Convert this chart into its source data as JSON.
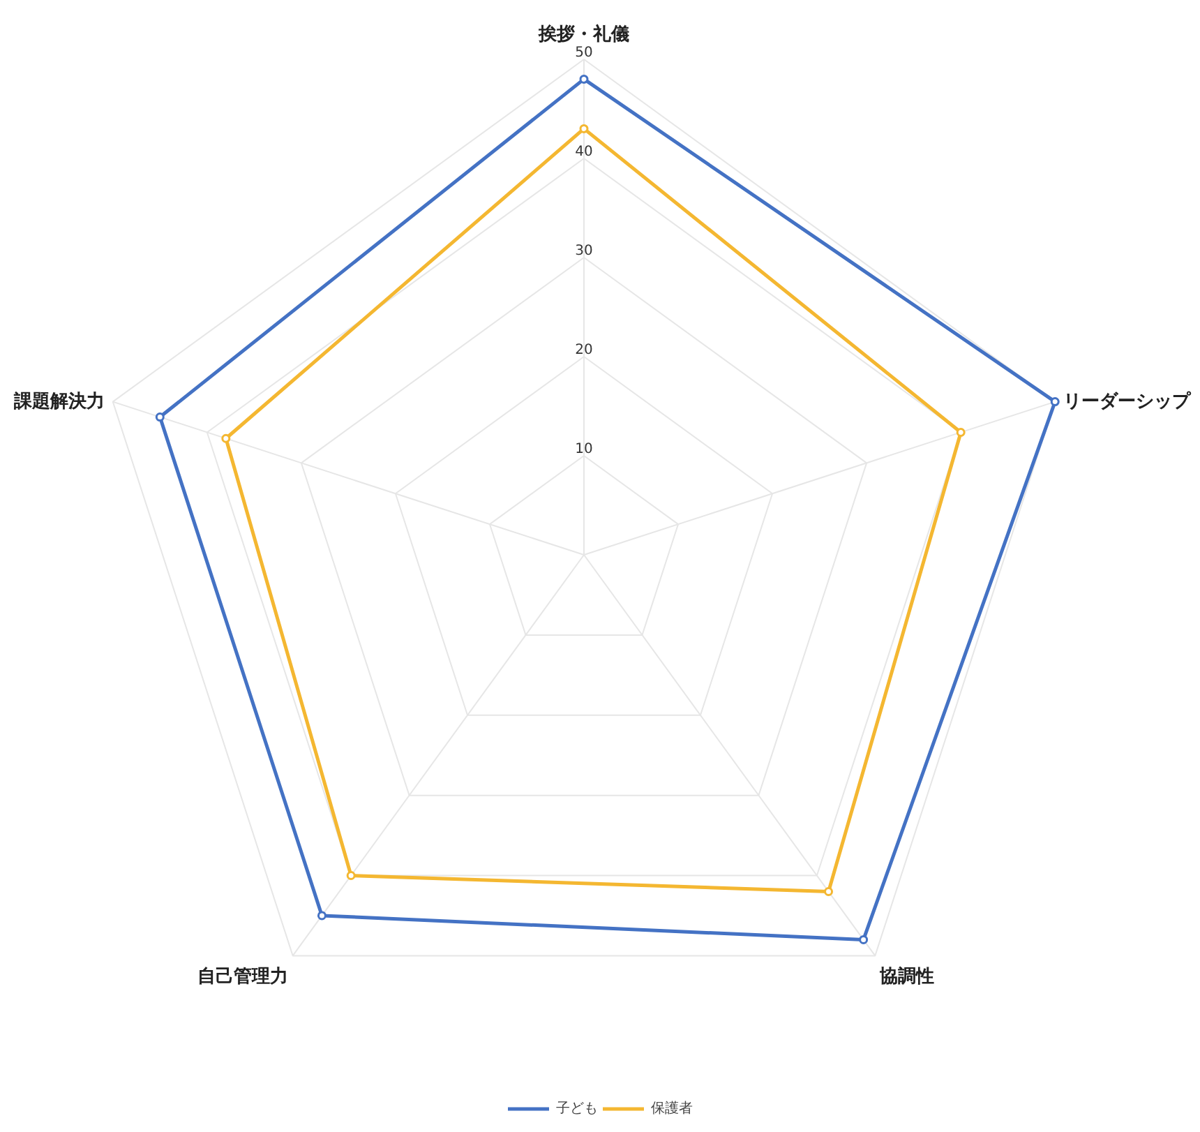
{
  "chart_data": {
    "type": "radar",
    "categories": [
      "挨拶・礼儀",
      "リーダーシップ",
      "協調性",
      "自己管理力",
      "課題解決力"
    ],
    "series": [
      {
        "name": "子ども",
        "color": "#4472c4",
        "values": [
          48,
          50,
          48,
          45,
          45
        ]
      },
      {
        "name": "保護者",
        "color": "#f4b731",
        "values": [
          43,
          40,
          42,
          40,
          38
        ]
      }
    ],
    "ylim": [
      0,
      50
    ],
    "yticks": [
      10,
      20,
      30,
      40,
      50
    ],
    "grid": true,
    "legend": "bottom",
    "marker": "circle",
    "line_style": "solid"
  }
}
